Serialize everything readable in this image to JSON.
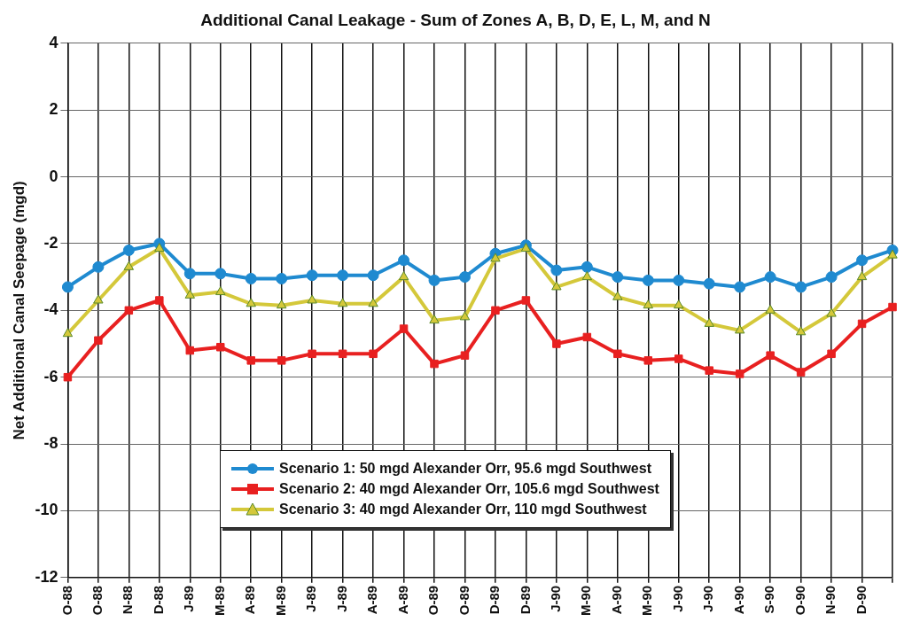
{
  "chart_data": {
    "type": "line",
    "title": "Additional Canal Leakage - Sum of Zones A, B, D, E, L, M, and N",
    "ylabel": "Net Additional Canal Seepage (mgd)",
    "categories": [
      "O-88",
      "O-88",
      "N-88",
      "D-88",
      "J-89",
      "M-89",
      "A-89",
      "M-89",
      "J-89",
      "J-89",
      "A-89",
      "A-89",
      "O-89",
      "O-89",
      "D-89",
      "D-89",
      "J-90",
      "M-90",
      "A-90",
      "M-90",
      "J-90",
      "J-90",
      "A-90",
      "S-90",
      "O-90",
      "N-90",
      "D-90",
      null
    ],
    "series": [
      {
        "name": "Scenario 1: 50 mgd Alexander Orr, 95.6 mgd Southwest",
        "color": "#1f8ad0",
        "marker": "circle",
        "values": [
          -3.3,
          -2.7,
          -2.2,
          -2.0,
          -2.9,
          -2.9,
          -3.05,
          -3.05,
          -2.95,
          -2.95,
          -2.95,
          -2.5,
          -3.1,
          -3.0,
          -2.3,
          -2.05,
          -2.8,
          -2.7,
          -3.0,
          -3.1,
          -3.1,
          -3.2,
          -3.3,
          -3.0,
          -3.3,
          -3.0,
          -2.5,
          -2.2
        ]
      },
      {
        "name": "Scenario 2: 40 mgd Alexander Orr, 105.6 mgd Southwest",
        "color": "#e82020",
        "marker": "square",
        "values": [
          -6.0,
          -4.9,
          -4.0,
          -3.7,
          -5.2,
          -5.1,
          -5.5,
          -5.5,
          -5.3,
          -5.3,
          -5.3,
          -4.55,
          -5.6,
          -5.35,
          -4.0,
          -3.7,
          -5.0,
          -4.8,
          -5.3,
          -5.5,
          -5.45,
          -5.8,
          -5.9,
          -5.35,
          -5.85,
          -5.3,
          -4.4,
          -3.9
        ]
      },
      {
        "name": "Scenario 3: 40 mgd Alexander Orr, 110 mgd Southwest",
        "color": "#d4c83a",
        "marker": "triangle",
        "values": [
          -4.7,
          -3.7,
          -2.7,
          -2.15,
          -3.55,
          -3.45,
          -3.8,
          -3.85,
          -3.7,
          -3.8,
          -3.8,
          -3.0,
          -4.3,
          -4.2,
          -2.45,
          -2.15,
          -3.3,
          -3.0,
          -3.6,
          -3.85,
          -3.85,
          -4.4,
          -4.6,
          -4.0,
          -4.65,
          -4.1,
          -3.0,
          -2.35
        ]
      }
    ],
    "ylim": [
      -12,
      4
    ],
    "yticks": [
      -12,
      -10,
      -8,
      -6,
      -4,
      -2,
      0,
      2,
      4
    ],
    "grid": true,
    "legend": "bottom",
    "line_style": "solid"
  }
}
